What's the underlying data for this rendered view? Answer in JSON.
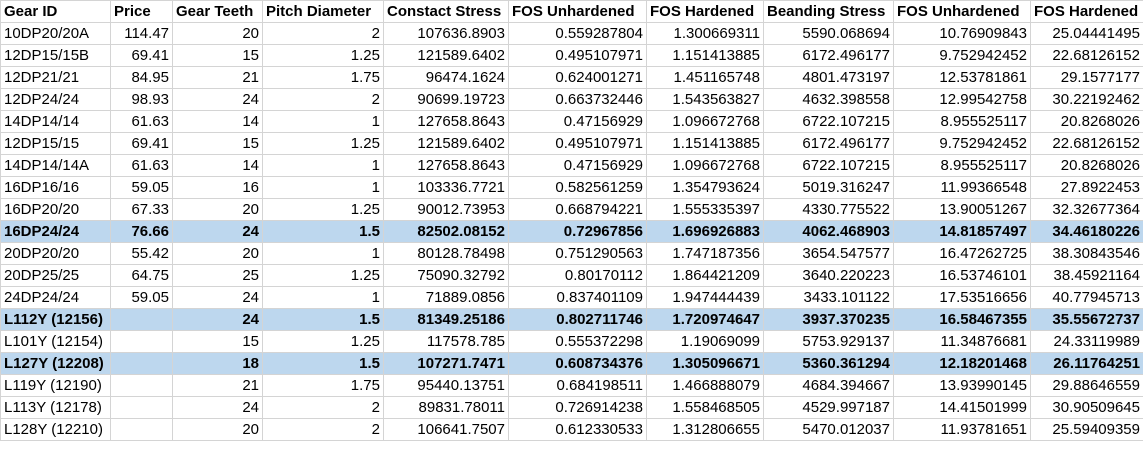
{
  "headers": [
    "Gear ID",
    "Price",
    "Gear Teeth",
    "Pitch Diameter",
    "Constact Stress",
    "FOS Unhardened",
    "FOS Hardened",
    "Beanding Stress",
    "FOS Unhardened",
    "FOS Hardened"
  ],
  "rows": [
    {
      "cells": [
        "10DP20/20A",
        "114.47",
        "20",
        "2",
        "107636.8903",
        "0.559287804",
        "1.300669311",
        "5590.068694",
        "10.76909843",
        "25.04441495"
      ],
      "highlighted": false
    },
    {
      "cells": [
        "12DP15/15B",
        "69.41",
        "15",
        "1.25",
        "121589.6402",
        "0.495107971",
        "1.151413885",
        "6172.496177",
        "9.752942452",
        "22.68126152"
      ],
      "highlighted": false
    },
    {
      "cells": [
        "12DP21/21",
        "84.95",
        "21",
        "1.75",
        "96474.1624",
        "0.624001271",
        "1.451165748",
        "4801.473197",
        "12.53781861",
        "29.1577177"
      ],
      "highlighted": false
    },
    {
      "cells": [
        "12DP24/24",
        "98.93",
        "24",
        "2",
        "90699.19723",
        "0.663732446",
        "1.543563827",
        "4632.398558",
        "12.99542758",
        "30.22192462"
      ],
      "highlighted": false
    },
    {
      "cells": [
        "14DP14/14",
        "61.63",
        "14",
        "1",
        "127658.8643",
        "0.47156929",
        "1.096672768",
        "6722.107215",
        "8.955525117",
        "20.8268026"
      ],
      "highlighted": false
    },
    {
      "cells": [
        "12DP15/15",
        "69.41",
        "15",
        "1.25",
        "121589.6402",
        "0.495107971",
        "1.151413885",
        "6172.496177",
        "9.752942452",
        "22.68126152"
      ],
      "highlighted": false
    },
    {
      "cells": [
        "14DP14/14A",
        "61.63",
        "14",
        "1",
        "127658.8643",
        "0.47156929",
        "1.096672768",
        "6722.107215",
        "8.955525117",
        "20.8268026"
      ],
      "highlighted": false
    },
    {
      "cells": [
        "16DP16/16",
        "59.05",
        "16",
        "1",
        "103336.7721",
        "0.582561259",
        "1.354793624",
        "5019.316247",
        "11.99366548",
        "27.8922453"
      ],
      "highlighted": false
    },
    {
      "cells": [
        "16DP20/20",
        "67.33",
        "20",
        "1.25",
        "90012.73953",
        "0.668794221",
        "1.555335397",
        "4330.775522",
        "13.90051267",
        "32.32677364"
      ],
      "highlighted": false
    },
    {
      "cells": [
        "16DP24/24",
        "76.66",
        "24",
        "1.5",
        "82502.08152",
        "0.72967856",
        "1.696926883",
        "4062.468903",
        "14.81857497",
        "34.46180226"
      ],
      "highlighted": true
    },
    {
      "cells": [
        "20DP20/20",
        "55.42",
        "20",
        "1",
        "80128.78498",
        "0.751290563",
        "1.747187356",
        "3654.547577",
        "16.47262725",
        "38.30843546"
      ],
      "highlighted": false
    },
    {
      "cells": [
        "20DP25/25",
        "64.75",
        "25",
        "1.25",
        "75090.32792",
        "0.80170112",
        "1.864421209",
        "3640.220223",
        "16.53746101",
        "38.45921164"
      ],
      "highlighted": false
    },
    {
      "cells": [
        "24DP24/24",
        "59.05",
        "24",
        "1",
        "71889.0856",
        "0.837401109",
        "1.947444439",
        "3433.101122",
        "17.53516656",
        "40.77945713"
      ],
      "highlighted": false
    },
    {
      "cells": [
        "L112Y (12156)",
        "",
        "24",
        "1.5",
        "81349.25186",
        "0.802711746",
        "1.720974647",
        "3937.370235",
        "16.58467355",
        "35.55672737"
      ],
      "highlighted": true
    },
    {
      "cells": [
        "L101Y (12154)",
        "",
        "15",
        "1.25",
        "117578.785",
        "0.555372298",
        "1.19069099",
        "5753.929137",
        "11.34876681",
        "24.33119989"
      ],
      "highlighted": false
    },
    {
      "cells": [
        "L127Y (12208)",
        "",
        "18",
        "1.5",
        "107271.7471",
        "0.608734376",
        "1.305096671",
        "5360.361294",
        "12.18201468",
        "26.11764251"
      ],
      "highlighted": true
    },
    {
      "cells": [
        "L119Y (12190)",
        "",
        "21",
        "1.75",
        "95440.13751",
        "0.684198511",
        "1.466888079",
        "4684.394667",
        "13.93990145",
        "29.88646559"
      ],
      "highlighted": false
    },
    {
      "cells": [
        "L113Y (12178)",
        "",
        "24",
        "2",
        "89831.78011",
        "0.726914238",
        "1.558468505",
        "4529.997187",
        "14.41501999",
        "30.90509645"
      ],
      "highlighted": false
    },
    {
      "cells": [
        "L128Y (12210)",
        "",
        "20",
        "2",
        "106641.7507",
        "0.612330533",
        "1.312806655",
        "5470.012037",
        "11.93781651",
        "25.59409359"
      ],
      "highlighted": false
    }
  ],
  "colors": {
    "highlight": "#bdd7ee",
    "grid": "#d4d4d4"
  }
}
